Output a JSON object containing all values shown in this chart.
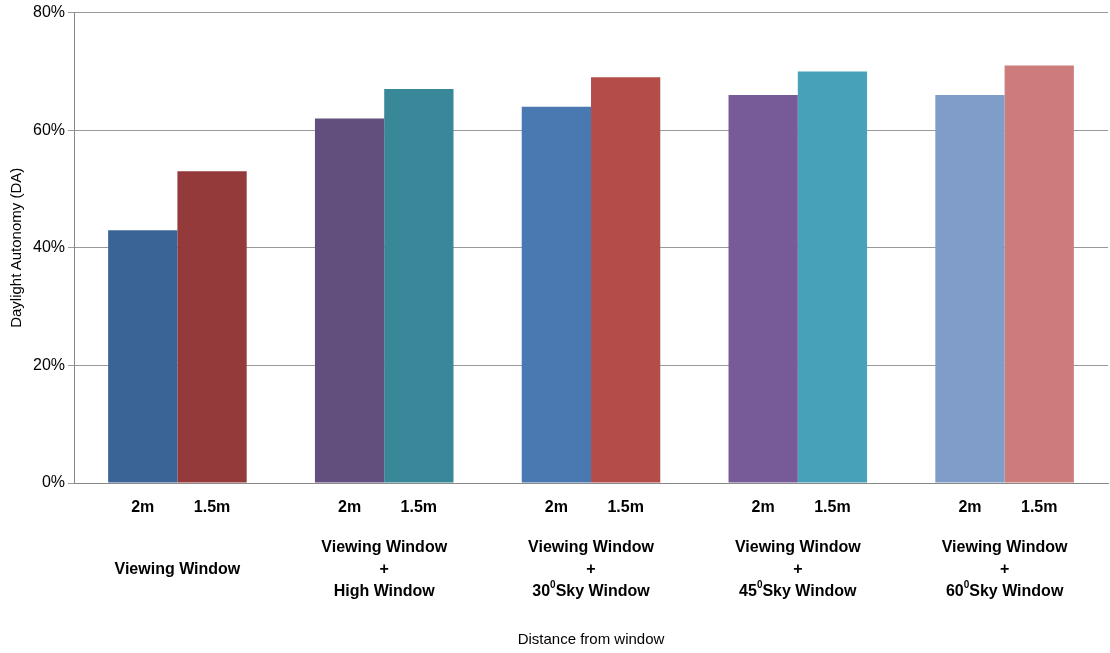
{
  "chart_data": {
    "type": "bar",
    "xlabel": "Distance from window",
    "ylabel": "Daylight Autonomy (DA)",
    "categories": [
      "Viewing Window",
      "Viewing Window\n+\nHigh Window",
      "Viewing Window\n+\n30$^{0}$Sky Window",
      "Viewing Window\n+\n45$^{0}$Sky Window",
      "Viewing Window\n+\n60$^{0}$Sky Window"
    ],
    "series": [
      {
        "name": "2m",
        "colors": [
          "#3a6496",
          "#634f7d",
          "#4a78b0",
          "#775b98",
          "#7f9dc8"
        ],
        "values": [
          43,
          62,
          64,
          66,
          66
        ]
      },
      {
        "name": "1.5m",
        "colors": [
          "#953a3a",
          "#38889a",
          "#b44c4a",
          "#47a2b9",
          "#cc7c7a"
        ],
        "values": [
          53,
          67,
          69,
          70,
          71
        ]
      }
    ],
    "ylim": [
      0,
      80
    ],
    "yticks": [
      {
        "value": 0,
        "label": "0%"
      },
      {
        "value": 20,
        "label": "20%"
      },
      {
        "value": 40,
        "label": "40%"
      },
      {
        "value": 60,
        "label": "60%"
      },
      {
        "value": 80,
        "label": "80%"
      }
    ],
    "grid": "y",
    "legend": false
  }
}
